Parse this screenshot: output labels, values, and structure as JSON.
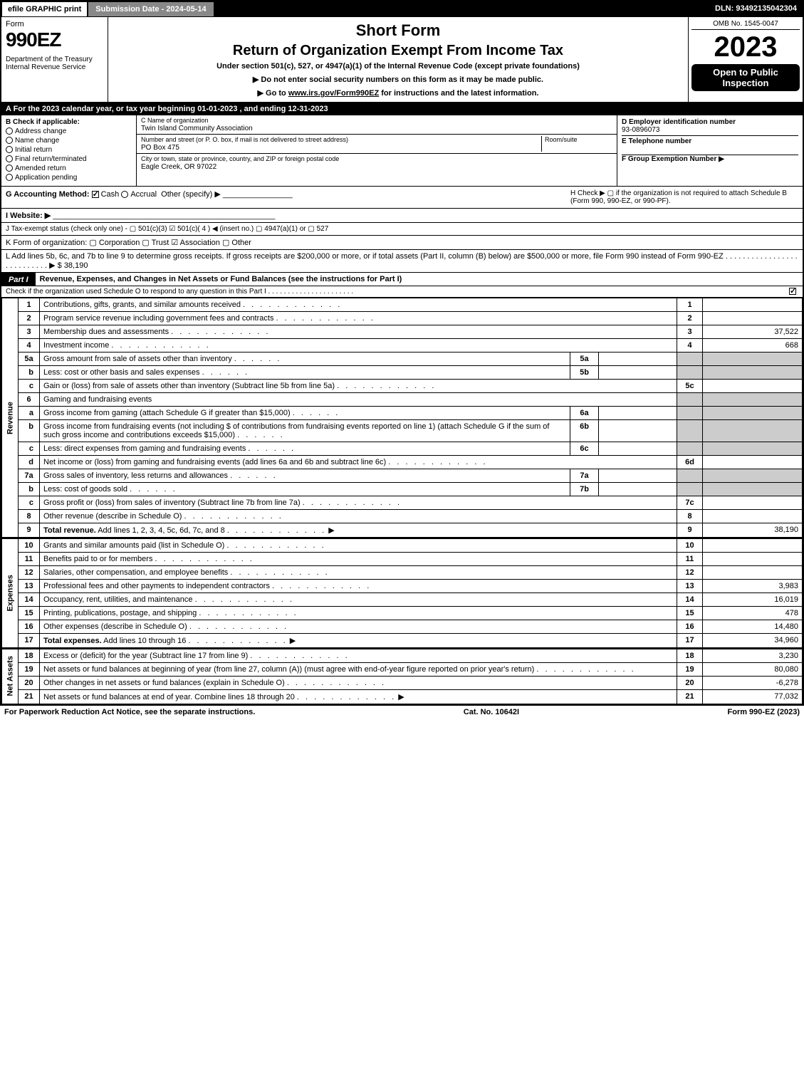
{
  "topbar": {
    "efile": "efile GRAPHIC print",
    "submission_date": "Submission Date - 2024-05-14",
    "dln": "DLN: 93492135042304"
  },
  "header": {
    "form_label": "Form",
    "form_number": "990EZ",
    "department": "Department of the Treasury\nInternal Revenue Service",
    "short_form": "Short Form",
    "main_title": "Return of Organization Exempt From Income Tax",
    "subtitle": "Under section 501(c), 527, or 4947(a)(1) of the Internal Revenue Code (except private foundations)",
    "note1": "▶ Do not enter social security numbers on this form as it may be made public.",
    "note2_prefix": "▶ Go to ",
    "note2_link": "www.irs.gov/Form990EZ",
    "note2_suffix": " for instructions and the latest information.",
    "omb": "OMB No. 1545-0047",
    "year": "2023",
    "inspection": "Open to Public Inspection"
  },
  "line_a": "A  For the 2023 calendar year, or tax year beginning 01-01-2023 , and ending 12-31-2023",
  "section_b": {
    "title": "B  Check if applicable:",
    "items": [
      "Address change",
      "Name change",
      "Initial return",
      "Final return/terminated",
      "Amended return",
      "Application pending"
    ]
  },
  "section_c": {
    "name_label": "C Name of organization",
    "name": "Twin Island Community Association",
    "street_label": "Number and street (or P. O. box, if mail is not delivered to street address)",
    "room_label": "Room/suite",
    "street": "PO Box 475",
    "city_label": "City or town, state or province, country, and ZIP or foreign postal code",
    "city": "Eagle Creek, OR  97022"
  },
  "section_right": {
    "d_label": "D Employer identification number",
    "d_value": "93-0896073",
    "e_label": "E Telephone number",
    "e_value": "",
    "f_label": "F Group Exemption Number  ▶",
    "f_value": ""
  },
  "g_label": "G Accounting Method:",
  "g_options": [
    "Cash",
    "Accrual",
    "Other (specify) ▶"
  ],
  "g_checked": "Cash",
  "h_text": "H  Check ▶  ▢  if the organization is not required to attach Schedule B (Form 990, 990-EZ, or 990-PF).",
  "i_label": "I Website: ▶",
  "j_label": "J Tax-exempt status (check only one) - ▢ 501(c)(3) ☑ 501(c)( 4 ) ◀ (insert no.) ▢ 4947(a)(1) or ▢ 527",
  "k_label": "K Form of organization:  ▢ Corporation  ▢ Trust  ☑ Association  ▢ Other",
  "l_label": "L Add lines 5b, 6c, and 7b to line 9 to determine gross receipts. If gross receipts are $200,000 or more, or if total assets (Part II, column (B) below) are $500,000 or more, file Form 990 instead of Form 990-EZ",
  "l_amount": "▶ $ 38,190",
  "part1": {
    "label": "Part I",
    "title": "Revenue, Expenses, and Changes in Net Assets or Fund Balances (see the instructions for Part I)",
    "subline": "Check if the organization used Schedule O to respond to any question in this Part I"
  },
  "sections": {
    "revenue": "Revenue",
    "expenses": "Expenses",
    "netassets": "Net Assets"
  },
  "rows": [
    {
      "n": "1",
      "desc": "Contributions, gifts, grants, and similar amounts received",
      "rn": "1",
      "amt": ""
    },
    {
      "n": "2",
      "desc": "Program service revenue including government fees and contracts",
      "rn": "2",
      "amt": ""
    },
    {
      "n": "3",
      "desc": "Membership dues and assessments",
      "rn": "3",
      "amt": "37,522"
    },
    {
      "n": "4",
      "desc": "Investment income",
      "rn": "4",
      "amt": "668"
    },
    {
      "n": "5a",
      "desc": "Gross amount from sale of assets other than inventory",
      "mid": "5a",
      "midval": "",
      "shade": true
    },
    {
      "n": "b",
      "desc": "Less: cost or other basis and sales expenses",
      "mid": "5b",
      "midval": "",
      "shade": true
    },
    {
      "n": "c",
      "desc": "Gain or (loss) from sale of assets other than inventory (Subtract line 5b from line 5a)",
      "rn": "5c",
      "amt": ""
    },
    {
      "n": "6",
      "desc": "Gaming and fundraising events",
      "shade": true,
      "noright": true
    },
    {
      "n": "a",
      "desc": "Gross income from gaming (attach Schedule G if greater than $15,000)",
      "mid": "6a",
      "midval": "",
      "shade": true
    },
    {
      "n": "b",
      "desc": "Gross income from fundraising events (not including $                    of contributions from fundraising events reported on line 1) (attach Schedule G if the sum of such gross income and contributions exceeds $15,000)",
      "mid": "6b",
      "midval": "",
      "shade": true
    },
    {
      "n": "c",
      "desc": "Less: direct expenses from gaming and fundraising events",
      "mid": "6c",
      "midval": "",
      "shade": true
    },
    {
      "n": "d",
      "desc": "Net income or (loss) from gaming and fundraising events (add lines 6a and 6b and subtract line 6c)",
      "rn": "6d",
      "amt": ""
    },
    {
      "n": "7a",
      "desc": "Gross sales of inventory, less returns and allowances",
      "mid": "7a",
      "midval": "",
      "shade": true
    },
    {
      "n": "b",
      "desc": "Less: cost of goods sold",
      "mid": "7b",
      "midval": "",
      "shade": true
    },
    {
      "n": "c",
      "desc": "Gross profit or (loss) from sales of inventory (Subtract line 7b from line 7a)",
      "rn": "7c",
      "amt": ""
    },
    {
      "n": "8",
      "desc": "Other revenue (describe in Schedule O)",
      "rn": "8",
      "amt": ""
    },
    {
      "n": "9",
      "desc": "Total revenue. Add lines 1, 2, 3, 4, 5c, 6d, 7c, and 8",
      "rn": "9",
      "amt": "38,190",
      "bold": true,
      "arrow": true
    }
  ],
  "expense_rows": [
    {
      "n": "10",
      "desc": "Grants and similar amounts paid (list in Schedule O)",
      "rn": "10",
      "amt": ""
    },
    {
      "n": "11",
      "desc": "Benefits paid to or for members",
      "rn": "11",
      "amt": ""
    },
    {
      "n": "12",
      "desc": "Salaries, other compensation, and employee benefits",
      "rn": "12",
      "amt": ""
    },
    {
      "n": "13",
      "desc": "Professional fees and other payments to independent contractors",
      "rn": "13",
      "amt": "3,983"
    },
    {
      "n": "14",
      "desc": "Occupancy, rent, utilities, and maintenance",
      "rn": "14",
      "amt": "16,019"
    },
    {
      "n": "15",
      "desc": "Printing, publications, postage, and shipping",
      "rn": "15",
      "amt": "478"
    },
    {
      "n": "16",
      "desc": "Other expenses (describe in Schedule O)",
      "rn": "16",
      "amt": "14,480"
    },
    {
      "n": "17",
      "desc": "Total expenses. Add lines 10 through 16",
      "rn": "17",
      "amt": "34,960",
      "bold": true,
      "arrow": true
    }
  ],
  "netasset_rows": [
    {
      "n": "18",
      "desc": "Excess or (deficit) for the year (Subtract line 17 from line 9)",
      "rn": "18",
      "amt": "3,230"
    },
    {
      "n": "19",
      "desc": "Net assets or fund balances at beginning of year (from line 27, column (A)) (must agree with end-of-year figure reported on prior year's return)",
      "rn": "19",
      "amt": "80,080"
    },
    {
      "n": "20",
      "desc": "Other changes in net assets or fund balances (explain in Schedule O)",
      "rn": "20",
      "amt": "-6,278"
    },
    {
      "n": "21",
      "desc": "Net assets or fund balances at end of year. Combine lines 18 through 20",
      "rn": "21",
      "amt": "77,032",
      "arrow": true
    }
  ],
  "footer": {
    "left": "For Paperwork Reduction Act Notice, see the separate instructions.",
    "mid": "Cat. No. 10642I",
    "right": "Form 990-EZ (2023)"
  }
}
